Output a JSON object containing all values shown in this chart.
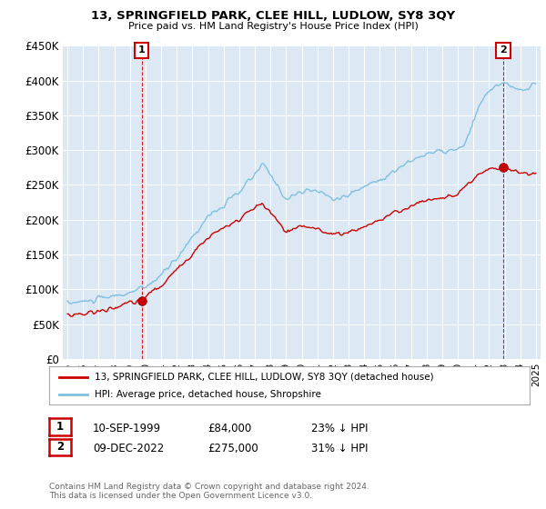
{
  "title": "13, SPRINGFIELD PARK, CLEE HILL, LUDLOW, SY8 3QY",
  "subtitle": "Price paid vs. HM Land Registry's House Price Index (HPI)",
  "legend_line1": "13, SPRINGFIELD PARK, CLEE HILL, LUDLOW, SY8 3QY (detached house)",
  "legend_line2": "HPI: Average price, detached house, Shropshire",
  "annotation1_label": "1",
  "annotation1_date": "10-SEP-1999",
  "annotation1_price": "£84,000",
  "annotation1_hpi": "23% ↓ HPI",
  "annotation2_label": "2",
  "annotation2_date": "09-DEC-2022",
  "annotation2_price": "£275,000",
  "annotation2_hpi": "31% ↓ HPI",
  "footnote": "Contains HM Land Registry data © Crown copyright and database right 2024.\nThis data is licensed under the Open Government Licence v3.0.",
  "sale1_year": 1999.75,
  "sale1_price": 84000,
  "sale2_year": 2022.92,
  "sale2_price": 275000,
  "hpi_color": "#7fbfdf",
  "house_color": "#cc0000",
  "sale_marker_color": "#cc0000",
  "vline_color": "#cc0000",
  "annotation_box_color": "#cc0000",
  "ylim": [
    0,
    450000
  ],
  "yticks": [
    0,
    50000,
    100000,
    150000,
    200000,
    250000,
    300000,
    350000,
    400000,
    450000
  ],
  "plot_bg_color": "#dce9f5",
  "background_color": "#ffffff",
  "grid_color": "#ffffff"
}
